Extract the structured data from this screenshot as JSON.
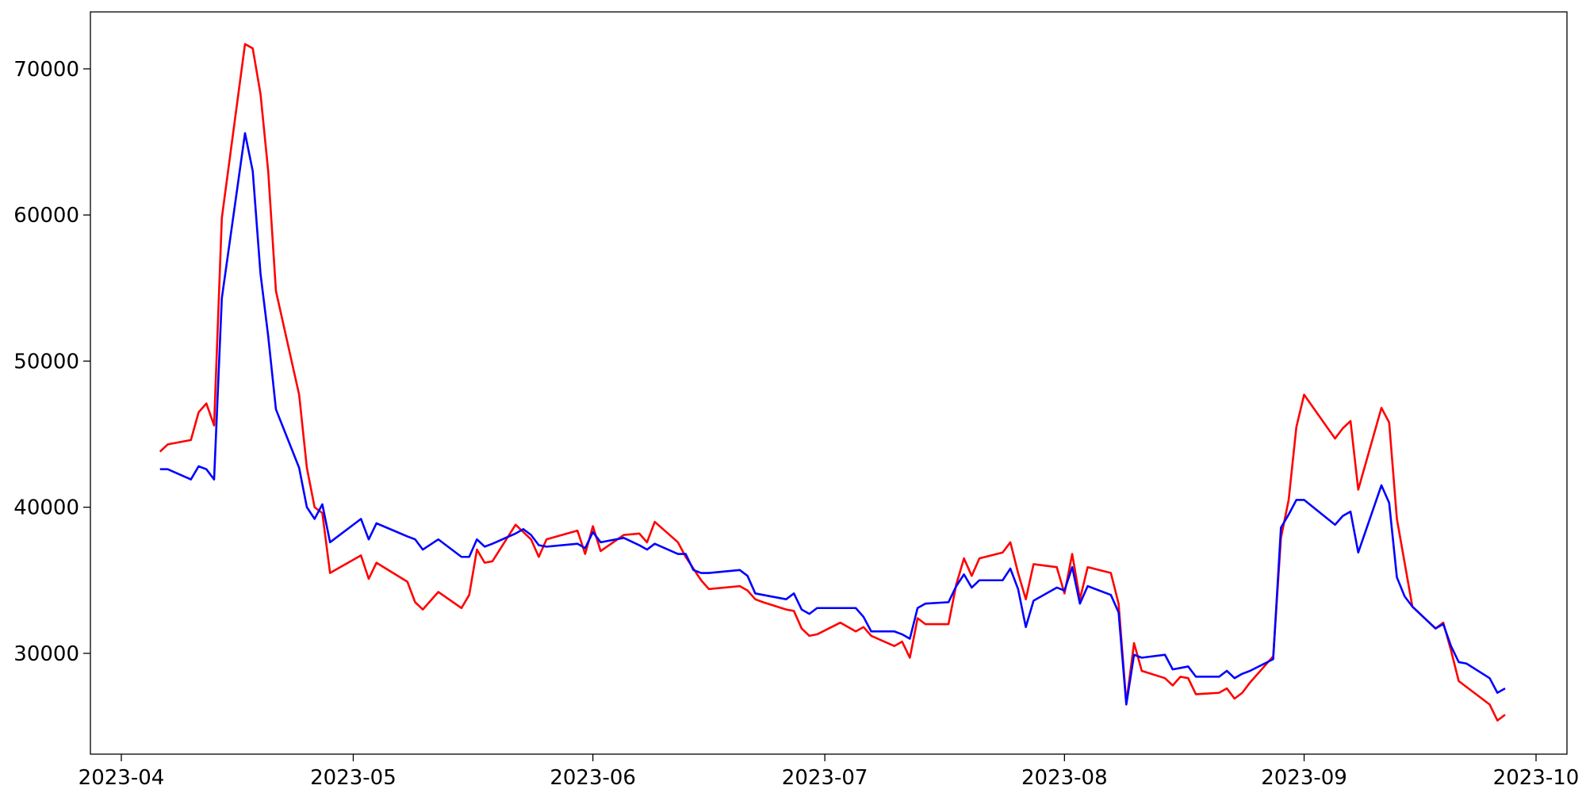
{
  "chart_data": {
    "type": "line",
    "x": [
      "2023-04-06",
      "2023-04-07",
      "2023-04-10",
      "2023-04-11",
      "2023-04-12",
      "2023-04-13",
      "2023-04-14",
      "2023-04-17",
      "2023-04-18",
      "2023-04-19",
      "2023-04-20",
      "2023-04-21",
      "2023-04-24",
      "2023-04-25",
      "2023-04-26",
      "2023-04-27",
      "2023-04-28",
      "2023-05-02",
      "2023-05-03",
      "2023-05-04",
      "2023-05-08",
      "2023-05-09",
      "2023-05-10",
      "2023-05-12",
      "2023-05-15",
      "2023-05-16",
      "2023-05-17",
      "2023-05-18",
      "2023-05-19",
      "2023-05-22",
      "2023-05-23",
      "2023-05-24",
      "2023-05-25",
      "2023-05-26",
      "2023-05-30",
      "2023-05-31",
      "2023-06-01",
      "2023-06-02",
      "2023-06-05",
      "2023-06-07",
      "2023-06-08",
      "2023-06-09",
      "2023-06-12",
      "2023-06-13",
      "2023-06-14",
      "2023-06-15",
      "2023-06-16",
      "2023-06-20",
      "2023-06-21",
      "2023-06-22",
      "2023-06-23",
      "2023-06-26",
      "2023-06-27",
      "2023-06-28",
      "2023-06-29",
      "2023-06-30",
      "2023-07-03",
      "2023-07-05",
      "2023-07-06",
      "2023-07-07",
      "2023-07-10",
      "2023-07-11",
      "2023-07-12",
      "2023-07-13",
      "2023-07-14",
      "2023-07-17",
      "2023-07-18",
      "2023-07-19",
      "2023-07-20",
      "2023-07-21",
      "2023-07-24",
      "2023-07-25",
      "2023-07-26",
      "2023-07-27",
      "2023-07-28",
      "2023-07-31",
      "2023-08-01",
      "2023-08-02",
      "2023-08-03",
      "2023-08-04",
      "2023-08-07",
      "2023-08-08",
      "2023-08-09",
      "2023-08-10",
      "2023-08-11",
      "2023-08-14",
      "2023-08-15",
      "2023-08-16",
      "2023-08-17",
      "2023-08-18",
      "2023-08-21",
      "2023-08-22",
      "2023-08-23",
      "2023-08-24",
      "2023-08-25",
      "2023-08-28",
      "2023-08-29",
      "2023-08-30",
      "2023-08-31",
      "2023-09-01",
      "2023-09-05",
      "2023-09-06",
      "2023-09-07",
      "2023-09-08",
      "2023-09-11",
      "2023-09-12",
      "2023-09-13",
      "2023-09-14",
      "2023-09-15",
      "2023-09-18",
      "2023-09-19",
      "2023-09-20",
      "2023-09-21",
      "2023-09-22",
      "2023-09-25",
      "2023-09-26",
      "2023-09-27"
    ],
    "series": [
      {
        "color": "#ff0000",
        "values": [
          43800,
          44300,
          44600,
          46500,
          47100,
          45600,
          59800,
          71700,
          71400,
          68300,
          63000,
          54800,
          47700,
          42700,
          40000,
          39600,
          35500,
          36700,
          35100,
          36200,
          34900,
          33500,
          33000,
          34200,
          33100,
          34000,
          37100,
          36200,
          36300,
          38800,
          38300,
          37800,
          36600,
          37800,
          38400,
          36800,
          38700,
          37000,
          38100,
          38200,
          37600,
          39000,
          37600,
          36600,
          35800,
          35000,
          34400,
          34600,
          34300,
          33700,
          33500,
          33000,
          32900,
          31700,
          31200,
          31300,
          32100,
          31500,
          31800,
          31200,
          30500,
          30800,
          29700,
          32400,
          32000,
          32000,
          34700,
          36500,
          35300,
          36500,
          36900,
          37600,
          35500,
          33700,
          36100,
          35900,
          34100,
          36800,
          33700,
          35900,
          35500,
          33400,
          26600,
          30700,
          28800,
          28300,
          27800,
          28400,
          28300,
          27200,
          27300,
          27600,
          26900,
          27300,
          28000,
          29800,
          37900,
          40500,
          45500,
          47700,
          44700,
          45400,
          45900,
          41200,
          46800,
          45800,
          39200,
          36200,
          33200,
          31700,
          32100,
          30200,
          28100,
          27700,
          26500,
          25400,
          25800
        ]
      },
      {
        "color": "#0000ff",
        "values": [
          42600,
          42600,
          41900,
          42800,
          42600,
          41900,
          54300,
          65600,
          63000,
          56000,
          51700,
          46700,
          42700,
          40000,
          39200,
          40200,
          37600,
          39200,
          37800,
          38900,
          38000,
          37800,
          37100,
          37800,
          36600,
          36600,
          37800,
          37300,
          37500,
          38200,
          38500,
          38100,
          37400,
          37300,
          37500,
          37200,
          38300,
          37600,
          37900,
          37400,
          37100,
          37500,
          36800,
          36800,
          35700,
          35500,
          35500,
          35700,
          35300,
          34100,
          34000,
          33700,
          34100,
          33000,
          32700,
          33100,
          33100,
          33100,
          32500,
          31500,
          31500,
          31300,
          31000,
          33100,
          33400,
          33500,
          34600,
          35400,
          34500,
          35000,
          35000,
          35800,
          34400,
          31800,
          33600,
          34500,
          34300,
          35900,
          33400,
          34600,
          34000,
          32800,
          26500,
          29900,
          29700,
          29900,
          28900,
          29000,
          29100,
          28400,
          28400,
          28800,
          28300,
          28600,
          28800,
          29600,
          38600,
          39500,
          40500,
          40500,
          38800,
          39400,
          39700,
          36900,
          41500,
          40300,
          35200,
          33900,
          33200,
          31700,
          32000,
          30500,
          29400,
          29300,
          28300,
          27300,
          27600
        ]
      }
    ],
    "xlim": [
      "2023-03-28",
      "2023-10-05"
    ],
    "xticks": [
      {
        "value": "2023-04-01",
        "label": "2023-04"
      },
      {
        "value": "2023-05-01",
        "label": "2023-05"
      },
      {
        "value": "2023-06-01",
        "label": "2023-06"
      },
      {
        "value": "2023-07-01",
        "label": "2023-07"
      },
      {
        "value": "2023-08-01",
        "label": "2023-08"
      },
      {
        "value": "2023-09-01",
        "label": "2023-09"
      },
      {
        "value": "2023-10-01",
        "label": "2023-10"
      }
    ],
    "ylim": [
      23100,
      73900
    ],
    "yticks": [
      30000,
      40000,
      50000,
      60000,
      70000
    ],
    "grid": false
  }
}
